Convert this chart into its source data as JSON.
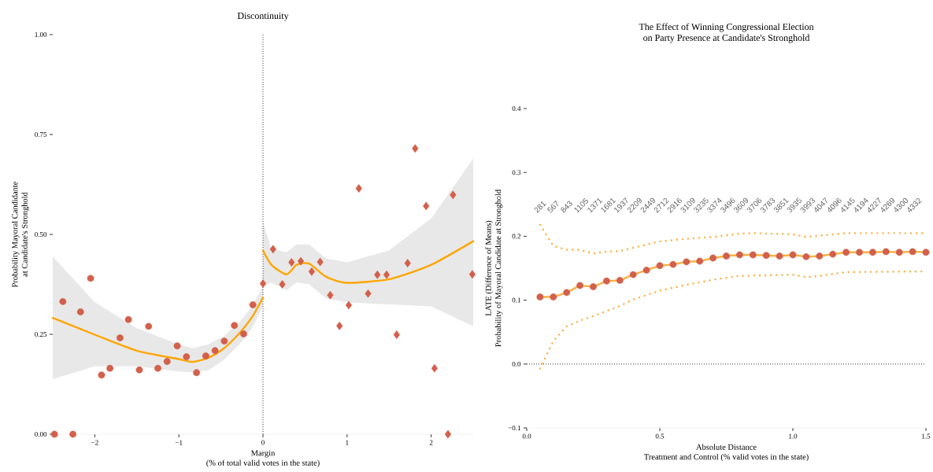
{
  "chart_data": [
    {
      "type": "scatter",
      "title": "Discontinuity",
      "xlabel": "Margin\n(% of total valid votes in the state)",
      "ylabel": "Probability Mayoral Candidante\nat Candidate's Stronghold",
      "xlim": [
        -2.5,
        2.5
      ],
      "ylim": [
        0,
        1
      ],
      "xticks": [
        {
          "value": -2,
          "label": "−2"
        },
        {
          "value": -1,
          "label": "−1"
        },
        0,
        1,
        2
      ],
      "yticks": [
        {
          "value": 0,
          "label": "0.00"
        },
        {
          "value": 0.25,
          "label": "0.25"
        },
        {
          "value": 0.5,
          "label": "0.50"
        },
        {
          "value": 0.75,
          "label": "0.75"
        },
        {
          "value": 1,
          "label": "1.00"
        }
      ],
      "ref_lines": [
        {
          "axis": "x",
          "value": 0,
          "color": "#000000",
          "line_style": "dotted"
        }
      ],
      "series": [
        {
          "marker": "circle",
          "color": "#d2604b",
          "x": [
            -2.48,
            -2.38,
            -2.26,
            -2.17,
            -2.05,
            -1.92,
            -1.82,
            -1.7,
            -1.6,
            -1.47,
            -1.36,
            -1.25,
            -1.14,
            -1.02,
            -0.91,
            -0.79,
            -0.68,
            -0.57,
            -0.46,
            -0.34,
            -0.23,
            -0.12
          ],
          "values": [
            0.0,
            0.332,
            0.0,
            0.306,
            0.39,
            0.148,
            0.165,
            0.241,
            0.287,
            0.161,
            0.27,
            0.165,
            0.182,
            0.221,
            0.194,
            0.154,
            0.196,
            0.209,
            0.233,
            0.272,
            0.251,
            0.324
          ]
        },
        {
          "marker": "diamond",
          "color": "#d2604b",
          "x": [
            0.0,
            0.12,
            0.23,
            0.34,
            0.45,
            0.58,
            0.68,
            0.8,
            0.91,
            1.02,
            1.14,
            1.25,
            1.36,
            1.47,
            1.59,
            1.72,
            1.81,
            1.94,
            2.04,
            2.2,
            2.26,
            2.49
          ],
          "values": [
            0.377,
            0.463,
            0.375,
            0.43,
            0.433,
            0.407,
            0.431,
            0.348,
            0.271,
            0.323,
            0.615,
            0.352,
            0.399,
            0.399,
            0.249,
            0.428,
            0.715,
            0.571,
            0.165,
            0.0,
            0.599,
            0.4
          ]
        },
        {
          "type": "line",
          "color": "#ffa500",
          "x": [
            -2.5,
            -2.0,
            -1.5,
            -1.0,
            -0.84,
            -0.65,
            -0.47,
            -0.28,
            -0.13,
            0.0
          ],
          "values": [
            0.291,
            0.249,
            0.209,
            0.188,
            0.181,
            0.191,
            0.214,
            0.253,
            0.293,
            0.342
          ],
          "lower": [
            0.138,
            0.17,
            0.17,
            0.157,
            0.155,
            0.16,
            0.185,
            0.225,
            0.265,
            0.32
          ],
          "upper": [
            0.445,
            0.33,
            0.265,
            0.225,
            0.215,
            0.225,
            0.245,
            0.28,
            0.32,
            0.37
          ]
        },
        {
          "type": "line",
          "color": "#ffa500",
          "x": [
            0.0,
            0.1,
            0.28,
            0.4,
            0.55,
            0.75,
            1.0,
            1.5,
            2.0,
            2.5
          ],
          "values": [
            0.46,
            0.424,
            0.4,
            0.424,
            0.427,
            0.394,
            0.379,
            0.388,
            0.424,
            0.483
          ],
          "lower": [
            0.37,
            0.38,
            0.36,
            0.38,
            0.375,
            0.34,
            0.33,
            0.325,
            0.32,
            0.27
          ],
          "upper": [
            0.53,
            0.465,
            0.455,
            0.475,
            0.475,
            0.44,
            0.43,
            0.46,
            0.54,
            0.69
          ]
        }
      ]
    },
    {
      "type": "line",
      "title": "The Effect of Winning Congressional Election\non Party Presence at Candidate's Stronghold",
      "xlabel": "Absolute Distance\nTreatment and Control (% valid votes in the state)",
      "ylabel": "LATE (Difference of Means)\nProbability of Mayoral Candidate at Stronghold",
      "xlim": [
        0,
        1.5
      ],
      "ylim": [
        -0.1,
        0.4
      ],
      "xticks": [
        {
          "value": 0,
          "label": "0.0"
        },
        0.5,
        {
          "value": 1,
          "label": "1.0"
        },
        1.5
      ],
      "yticks": [
        {
          "value": -0.1,
          "label": "−0.1"
        },
        {
          "value": 0,
          "label": "0.0"
        },
        0.1,
        0.2,
        0.3,
        0.4
      ],
      "ref_lines": [
        {
          "axis": "y",
          "value": 0,
          "color": "#000000",
          "line_style": "dotted"
        }
      ],
      "series": [
        {
          "color": "#fbb040",
          "x": [
            0.05,
            0.1,
            0.15,
            0.2,
            0.25,
            0.3,
            0.35,
            0.4,
            0.45,
            0.5,
            0.55,
            0.6,
            0.65,
            0.7,
            0.75,
            0.8,
            0.85,
            0.9,
            0.95,
            1.0,
            1.05,
            1.1,
            1.15,
            1.2,
            1.25,
            1.3,
            1.35,
            1.4,
            1.45,
            1.5
          ],
          "values": [
            0.105,
            0.105,
            0.112,
            0.123,
            0.121,
            0.13,
            0.131,
            0.14,
            0.147,
            0.154,
            0.156,
            0.16,
            0.161,
            0.166,
            0.169,
            0.171,
            0.171,
            0.17,
            0.169,
            0.171,
            0.168,
            0.169,
            0.172,
            0.175,
            0.175,
            0.175,
            0.176,
            0.175,
            0.176,
            0.175
          ]
        },
        {
          "type": "scatter",
          "marker": "circle",
          "color": "#d2604b",
          "x": [
            0.05,
            0.1,
            0.15,
            0.2,
            0.25,
            0.3,
            0.35,
            0.4,
            0.45,
            0.5,
            0.55,
            0.6,
            0.65,
            0.7,
            0.75,
            0.8,
            0.85,
            0.9,
            0.95,
            1.0,
            1.05,
            1.1,
            1.15,
            1.2,
            1.25,
            1.3,
            1.35,
            1.4,
            1.45,
            1.5
          ],
          "values": [
            0.105,
            0.105,
            0.112,
            0.123,
            0.121,
            0.13,
            0.131,
            0.14,
            0.147,
            0.154,
            0.156,
            0.16,
            0.161,
            0.166,
            0.169,
            0.171,
            0.171,
            0.17,
            0.169,
            0.171,
            0.168,
            0.169,
            0.172,
            0.175,
            0.175,
            0.175,
            0.176,
            0.175,
            0.176,
            0.175
          ]
        },
        {
          "line_style": "dotted",
          "color": "#fbb040",
          "x": [
            0.05,
            0.1,
            0.15,
            0.2,
            0.25,
            0.3,
            0.35,
            0.4,
            0.45,
            0.5,
            0.6,
            0.7,
            0.8,
            0.85,
            1.0,
            1.05,
            1.1,
            1.2,
            1.5
          ],
          "values": [
            0.218,
            0.185,
            0.179,
            0.179,
            0.173,
            0.176,
            0.177,
            0.182,
            0.187,
            0.192,
            0.196,
            0.199,
            0.204,
            0.205,
            0.203,
            0.199,
            0.201,
            0.205,
            0.205
          ]
        },
        {
          "line_style": "dotted",
          "color": "#fbb040",
          "x": [
            0.05,
            0.1,
            0.15,
            0.2,
            0.25,
            0.3,
            0.35,
            0.4,
            0.45,
            0.5,
            0.6,
            0.7,
            0.8,
            0.9,
            1.0,
            1.05,
            1.1,
            1.2,
            1.5
          ],
          "values": [
            -0.007,
            0.036,
            0.059,
            0.068,
            0.075,
            0.083,
            0.091,
            0.101,
            0.108,
            0.115,
            0.124,
            0.132,
            0.138,
            0.139,
            0.14,
            0.136,
            0.138,
            0.144,
            0.145
          ]
        }
      ],
      "annotations": [
        "281",
        "567",
        "843",
        "1105",
        "1371",
        "1681",
        "1937",
        "2209",
        "2449",
        "2712",
        "2916",
        "3109",
        "3235",
        "3374",
        "3496",
        "3609",
        "3706",
        "3783",
        "3851",
        "3935",
        "3993",
        "4047",
        "4096",
        "4145",
        "4194",
        "4227",
        "4269",
        "4300",
        "4332"
      ]
    }
  ]
}
